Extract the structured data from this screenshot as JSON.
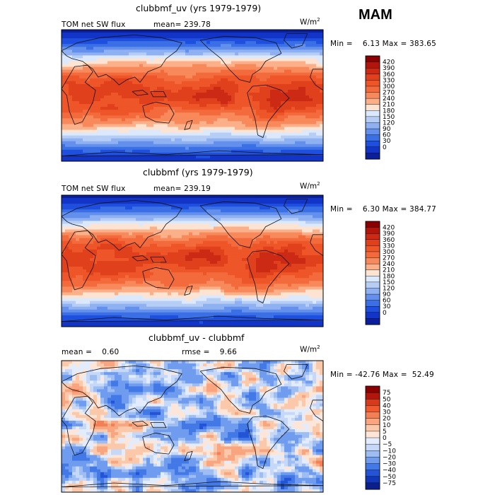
{
  "season": "MAM",
  "panels": [
    {
      "title": "clubbmf_uv (yrs 1979-1979)",
      "left_label": "TOM net SW flux",
      "mean_text": "mean= 239.78",
      "unit": "W/m",
      "unit_exp": "2",
      "minmax": "Min =    6.13 Max = 383.65",
      "kind": "field",
      "colorbar": {
        "labels": [
          "420",
          "390",
          "360",
          "330",
          "300",
          "270",
          "240",
          "210",
          "180",
          "150",
          "120",
          "90",
          "60",
          "30",
          "0"
        ],
        "colors": [
          "#8b0000",
          "#b1160c",
          "#cc2a14",
          "#e0401c",
          "#ee5528",
          "#f36b3c",
          "#f8895a",
          "#fbb08a",
          "#fde4d2",
          "#dce8fb",
          "#b6cef6",
          "#8fb1f1",
          "#6390ec",
          "#3b6fe6",
          "#1f4fdf",
          "#1235c8",
          "#0a1f9c"
        ]
      }
    },
    {
      "title": "clubbmf (yrs 1979-1979)",
      "left_label": "TOM net SW flux",
      "mean_text": "mean= 239.19",
      "unit": "W/m",
      "unit_exp": "2",
      "minmax": "Min =    6.30 Max = 384.77",
      "kind": "field",
      "colorbar": {
        "labels": [
          "420",
          "390",
          "360",
          "330",
          "300",
          "270",
          "240",
          "210",
          "180",
          "150",
          "120",
          "90",
          "60",
          "30",
          "0"
        ],
        "colors": [
          "#8b0000",
          "#b1160c",
          "#cc2a14",
          "#e0401c",
          "#ee5528",
          "#f36b3c",
          "#f8895a",
          "#fbb08a",
          "#fde4d2",
          "#dce8fb",
          "#b6cef6",
          "#8fb1f1",
          "#6390ec",
          "#3b6fe6",
          "#1f4fdf",
          "#1235c8",
          "#0a1f9c"
        ]
      }
    },
    {
      "title": "clubbmf_uv - clubbmf",
      "left_label": "mean =    0.60",
      "mean_text": "rmse =    9.66",
      "unit": "W/m",
      "unit_exp": "2",
      "minmax": "Min = -42.76 Max =  52.49",
      "kind": "diff",
      "colorbar": {
        "labels": [
          "75",
          "50",
          "40",
          "30",
          "20",
          "10",
          "5",
          "0",
          "−5",
          "−10",
          "−20",
          "−30",
          "−40",
          "−50",
          "−75"
        ],
        "colors": [
          "#8b0000",
          "#b1160c",
          "#d83a1c",
          "#ef5a2e",
          "#f57f55",
          "#f9a57f",
          "#fcc8aa",
          "#fde6d7",
          "#e3ecfc",
          "#c6d8f8",
          "#9dbdf3",
          "#6f9cee",
          "#4379e6",
          "#2354d8",
          "#1236b8",
          "#0a1f8c"
        ]
      }
    }
  ]
}
